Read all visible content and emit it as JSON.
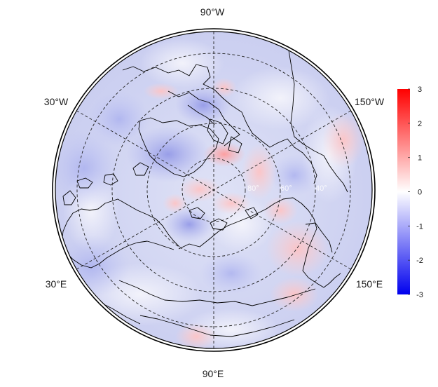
{
  "map": {
    "projection": "polar-stereographic-north",
    "longitude_labels": [
      {
        "text": "90°W",
        "pos": "top"
      },
      {
        "text": "150°W",
        "pos": "upper-right"
      },
      {
        "text": "30°W",
        "pos": "upper-left"
      },
      {
        "text": "30°E",
        "pos": "lower-left"
      },
      {
        "text": "150°E",
        "pos": "lower-right"
      },
      {
        "text": "90°E",
        "pos": "bottom"
      }
    ],
    "latitude_labels": [
      "80°",
      "60°",
      "40°"
    ]
  },
  "colorbar": {
    "min": -3,
    "max": 3,
    "ticks": [
      "3",
      "2",
      "1",
      "0",
      "-1",
      "-2",
      "-3"
    ],
    "low_color": "#0000ee",
    "mid_color": "#ffffff",
    "high_color": "#ff0000"
  }
}
